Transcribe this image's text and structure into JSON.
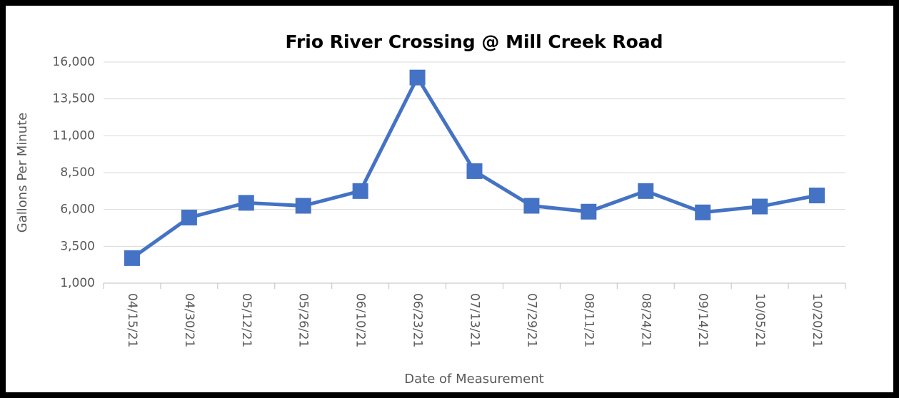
{
  "chart_data": {
    "type": "line",
    "title": "Frio River Crossing @ Mill Creek Road",
    "xlabel": "Date of Measurement",
    "ylabel": "Gallons Per Minute",
    "categories": [
      "04/15/21",
      "04/30/21",
      "05/12/21",
      "05/26/21",
      "06/10/21",
      "06/23/21",
      "07/13/21",
      "07/29/21",
      "08/11/21",
      "08/24/21",
      "09/14/21",
      "10/05/21",
      "10/20/21"
    ],
    "series": [
      {
        "name": "Gallons Per Minute",
        "color": "#4472c4",
        "values": [
          2700,
          5450,
          6450,
          6250,
          7250,
          14950,
          8600,
          6250,
          5850,
          7250,
          5800,
          6200,
          6950
        ]
      }
    ],
    "ylim": [
      1000,
      16000
    ],
    "yticks": [
      {
        "value": 1000,
        "label": "1,000"
      },
      {
        "value": 3500,
        "label": "3,500"
      },
      {
        "value": 6000,
        "label": "6,000"
      },
      {
        "value": 8500,
        "label": "8,500"
      },
      {
        "value": 11000,
        "label": "11,000"
      },
      {
        "value": 13500,
        "label": "13,500"
      },
      {
        "value": 16000,
        "label": "16,000"
      }
    ],
    "grid": true
  }
}
